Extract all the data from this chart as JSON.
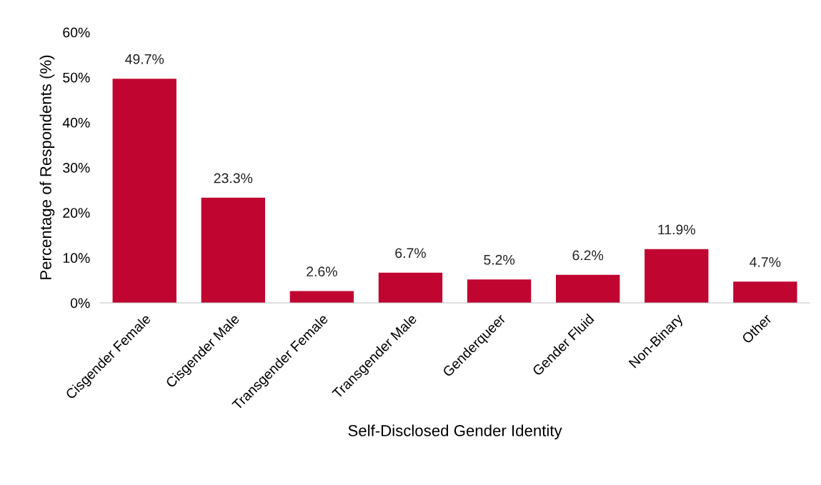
{
  "chart_data": {
    "type": "bar",
    "xlabel": "Self-Disclosed Gender Identity",
    "ylabel": "Percentage of Respondents (%)",
    "categories": [
      "Cisgender Female",
      "Cisgender Male",
      "Transgender Female",
      "Transgender Male",
      "Genderqueer",
      "Gender Fluid",
      "Non-Binary",
      "Other"
    ],
    "values": [
      49.7,
      23.3,
      2.6,
      6.7,
      5.2,
      6.2,
      11.9,
      4.7
    ],
    "value_labels": [
      "49.7%",
      "23.3%",
      "2.6%",
      "6.7%",
      "5.2%",
      "6.2%",
      "11.9%",
      "4.7%"
    ],
    "color": "#c00530",
    "ylim": [
      0,
      60
    ],
    "yticks": [
      {
        "value": 0,
        "label": "0%"
      },
      {
        "value": 10,
        "label": "10%"
      },
      {
        "value": 20,
        "label": "20%"
      },
      {
        "value": 30,
        "label": "30%"
      },
      {
        "value": 40,
        "label": "40%"
      },
      {
        "value": 50,
        "label": "50%"
      },
      {
        "value": 60,
        "label": "60%"
      }
    ],
    "grid": false
  }
}
